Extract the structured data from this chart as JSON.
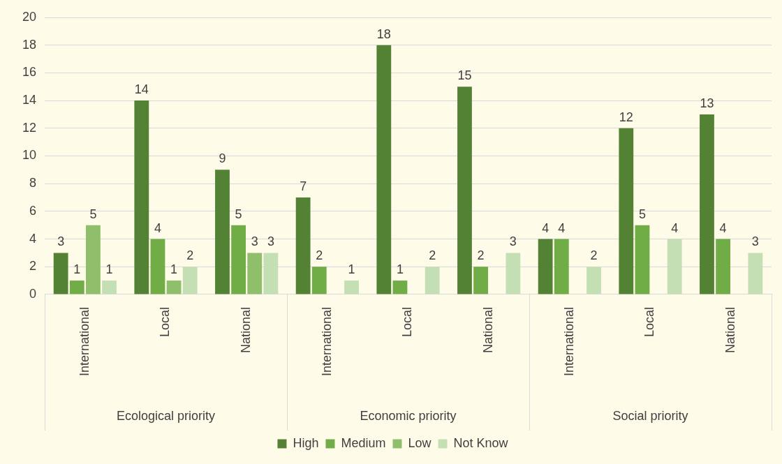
{
  "chart_data": {
    "type": "bar",
    "categories": [
      "International",
      "Local",
      "National",
      "International",
      "Local",
      "National",
      "International",
      "Local",
      "National"
    ],
    "annotations": [
      "Ecological priority",
      "Economic priority",
      "Social priority"
    ],
    "series": [
      {
        "name": "High",
        "color": "#548235",
        "values": [
          3,
          14,
          9,
          7,
          18,
          15,
          4,
          12,
          13
        ]
      },
      {
        "name": "Medium",
        "color": "#70ad47",
        "values": [
          1,
          4,
          5,
          2,
          1,
          2,
          4,
          5,
          4
        ]
      },
      {
        "name": "Low",
        "color": "#8fbf6a",
        "values": [
          5,
          1,
          3,
          null,
          null,
          null,
          null,
          null,
          null
        ]
      },
      {
        "name": "Not Know",
        "color": "#c5dfb4",
        "values": [
          1,
          2,
          3,
          1,
          2,
          3,
          2,
          4,
          3
        ]
      }
    ],
    "ylim": [
      0,
      20
    ],
    "yticks": [
      0,
      2,
      4,
      6,
      8,
      10,
      12,
      14,
      16,
      18,
      20
    ],
    "grid": "y",
    "legend": "bottom",
    "data_labels": true
  }
}
